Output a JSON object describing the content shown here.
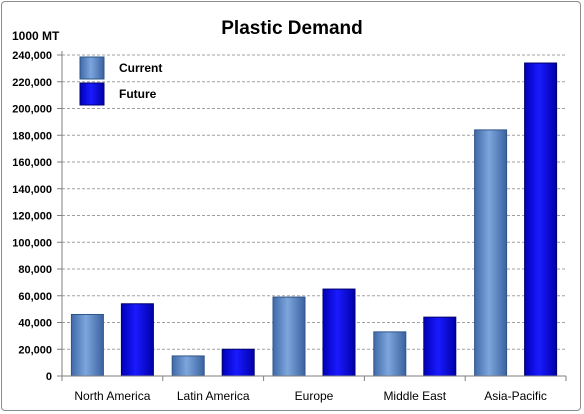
{
  "chart_data": {
    "type": "bar",
    "title": "Plastic Demand",
    "ylabel": "1000 MT",
    "xlabel": "",
    "categories": [
      "North America",
      "Latin America",
      "Europe",
      "Middle East",
      "Asia-Pacific"
    ],
    "series": [
      {
        "name": "Current",
        "color": "#5b87c5",
        "values": [
          46000,
          15000,
          59000,
          33000,
          184000
        ]
      },
      {
        "name": "Future",
        "color": "#0000ee",
        "values": [
          54000,
          20000,
          65000,
          44000,
          234000
        ]
      }
    ],
    "ylim": [
      0,
      240000
    ],
    "yticks": [
      "0",
      "20,000",
      "40,000",
      "60,000",
      "80,000",
      "100,000",
      "120,000",
      "140,000",
      "160,000",
      "180,000",
      "200,000",
      "220,000",
      "240,000"
    ],
    "grid": true,
    "legend": "top-left"
  }
}
